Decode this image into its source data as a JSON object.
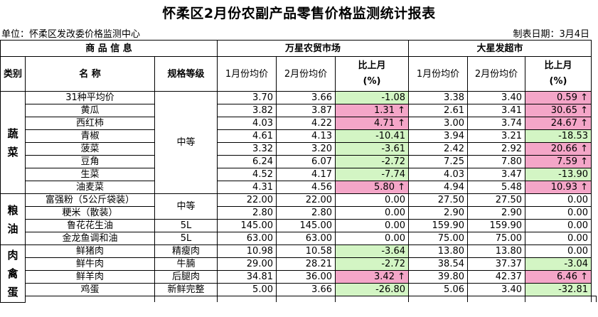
{
  "title": "怀柔区2月份农副产品零售价格监测统计报表",
  "unit_label": "单位：怀柔区发改委价格监测中心",
  "date_label": "制表日期：3月4日",
  "header": {
    "product_info": "商 品 信 息",
    "market1": "万星农贸市场",
    "market2": "大星发超市",
    "category": "类别",
    "name": "名 称",
    "grade": "规格等级",
    "jan_avg": "1月份均价",
    "feb_avg": "2月份均价",
    "mom_line1": "比上月",
    "mom_line2": "(%)"
  },
  "colors": {
    "up": "#f4a6c8",
    "down": "#d3f5c4"
  },
  "categories": [
    "蔬菜",
    "粮油",
    "肉禽蛋"
  ],
  "veg_grade": "中等",
  "grain_grade": "中等",
  "rows": [
    {
      "name": "31种平均价",
      "grade": "",
      "m1_jan": "3.70",
      "m1_feb": "3.66",
      "m1_pct": "-1.08",
      "m1_dir": "down",
      "m2_jan": "3.38",
      "m2_feb": "3.40",
      "m2_pct": "0.59 ↑",
      "m2_dir": "up"
    },
    {
      "name": "黄瓜",
      "grade": "",
      "m1_jan": "3.82",
      "m1_feb": "3.87",
      "m1_pct": "1.31 ↑",
      "m1_dir": "up",
      "m2_jan": "2.61",
      "m2_feb": "3.41",
      "m2_pct": "30.65 ↑",
      "m2_dir": "up"
    },
    {
      "name": "西红柿",
      "grade": "",
      "m1_jan": "4.03",
      "m1_feb": "4.22",
      "m1_pct": "4.71 ↑",
      "m1_dir": "up",
      "m2_jan": "3.00",
      "m2_feb": "3.74",
      "m2_pct": "24.67 ↑",
      "m2_dir": "up"
    },
    {
      "name": "青椒",
      "grade": "",
      "m1_jan": "4.61",
      "m1_feb": "4.13",
      "m1_pct": "-10.41",
      "m1_dir": "down",
      "m2_jan": "3.94",
      "m2_feb": "3.21",
      "m2_pct": "-18.53",
      "m2_dir": "down"
    },
    {
      "name": "菠菜",
      "grade": "",
      "m1_jan": "3.32",
      "m1_feb": "3.20",
      "m1_pct": "-3.61",
      "m1_dir": "down",
      "m2_jan": "2.42",
      "m2_feb": "2.92",
      "m2_pct": "20.66 ↑",
      "m2_dir": "up"
    },
    {
      "name": "豆角",
      "grade": "",
      "m1_jan": "6.24",
      "m1_feb": "6.07",
      "m1_pct": "-2.72",
      "m1_dir": "down",
      "m2_jan": "7.25",
      "m2_feb": "7.80",
      "m2_pct": "7.59 ↑",
      "m2_dir": "up"
    },
    {
      "name": "生菜",
      "grade": "",
      "m1_jan": "4.52",
      "m1_feb": "4.17",
      "m1_pct": "-7.74",
      "m1_dir": "down",
      "m2_jan": "4.03",
      "m2_feb": "3.47",
      "m2_pct": "-13.90",
      "m2_dir": "down"
    },
    {
      "name": "油麦菜",
      "grade": "",
      "m1_jan": "4.31",
      "m1_feb": "4.56",
      "m1_pct": "5.80 ↑",
      "m1_dir": "up",
      "m2_jan": "4.94",
      "m2_feb": "5.48",
      "m2_pct": "10.93 ↑",
      "m2_dir": "up"
    },
    {
      "name": "富强粉（5公斤袋装）",
      "grade": "",
      "m1_jan": "22.00",
      "m1_feb": "22.00",
      "m1_pct": "0.00",
      "m1_dir": "",
      "m2_jan": "27.50",
      "m2_feb": "27.50",
      "m2_pct": "0.00",
      "m2_dir": ""
    },
    {
      "name": "粳米（散装）",
      "grade": "",
      "m1_jan": "2.80",
      "m1_feb": "2.80",
      "m1_pct": "0.00",
      "m1_dir": "",
      "m2_jan": "2.90",
      "m2_feb": "2.90",
      "m2_pct": "0.00",
      "m2_dir": ""
    },
    {
      "name": "鲁花花生油",
      "grade": "5L",
      "m1_jan": "145.00",
      "m1_feb": "145.00",
      "m1_pct": "0.00",
      "m1_dir": "",
      "m2_jan": "159.90",
      "m2_feb": "159.90",
      "m2_pct": "0.00",
      "m2_dir": ""
    },
    {
      "name": "金龙鱼调和油",
      "grade": "5L",
      "m1_jan": "63.00",
      "m1_feb": "63.00",
      "m1_pct": "0.00",
      "m1_dir": "",
      "m2_jan": "75.00",
      "m2_feb": "75.00",
      "m2_pct": "0.00",
      "m2_dir": ""
    },
    {
      "name": "鲜猪肉",
      "grade": "精瘦肉",
      "m1_jan": "10.98",
      "m1_feb": "10.58",
      "m1_pct": "-3.64",
      "m1_dir": "down",
      "m2_jan": "13.80",
      "m2_feb": "13.80",
      "m2_pct": "0.00",
      "m2_dir": ""
    },
    {
      "name": "鲜牛肉",
      "grade": "牛腩",
      "m1_jan": "29.00",
      "m1_feb": "28.21",
      "m1_pct": "-2.72",
      "m1_dir": "down",
      "m2_jan": "38.54",
      "m2_feb": "37.37",
      "m2_pct": "-3.04",
      "m2_dir": "down"
    },
    {
      "name": "鲜羊肉",
      "grade": "后腿肉",
      "m1_jan": "34.81",
      "m1_feb": "36.00",
      "m1_pct": "3.42 ↑",
      "m1_dir": "up",
      "m2_jan": "39.80",
      "m2_feb": "42.37",
      "m2_pct": "6.46 ↑",
      "m2_dir": "up"
    },
    {
      "name": "鸡蛋",
      "grade": "新鲜完整",
      "m1_jan": "5.00",
      "m1_feb": "3.66",
      "m1_pct": "-26.80",
      "m1_dir": "down",
      "m2_jan": "5.06",
      "m2_feb": "3.40",
      "m2_pct": "-32.81",
      "m2_dir": "down"
    }
  ]
}
